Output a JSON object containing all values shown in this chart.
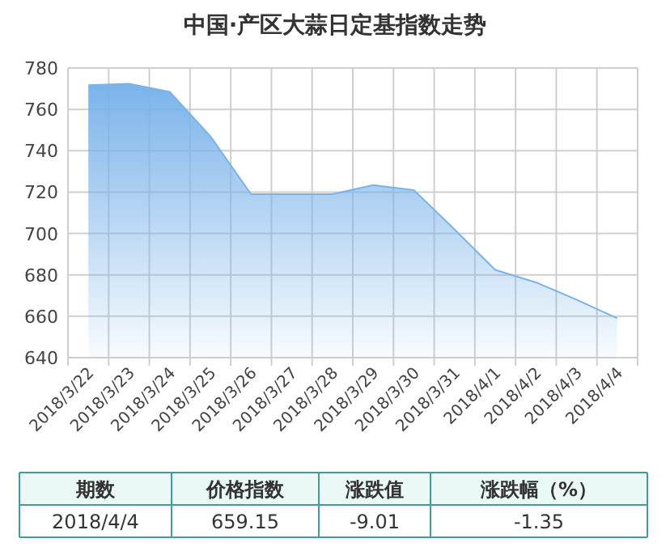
{
  "chart_data": {
    "type": "area",
    "title": "中国·产区大蒜日定基指数走势",
    "categories": [
      "2018/3/22",
      "2018/3/23",
      "2018/3/24",
      "2018/3/25",
      "2018/3/26",
      "2018/3/27",
      "2018/3/28",
      "2018/3/29",
      "2018/3/30",
      "2018/3/31",
      "2018/4/1",
      "2018/4/2",
      "2018/4/3",
      "2018/4/4"
    ],
    "series": [
      {
        "color": "#7ab3ea",
        "values": [
          771.7,
          772.4,
          768.5,
          747,
          719,
          719,
          719,
          723.4,
          721,
          702,
          682.4,
          676.4,
          668,
          659
        ]
      }
    ],
    "ylim": [
      640,
      780
    ],
    "yticks": [
      640,
      660,
      680,
      700,
      720,
      740,
      760,
      780
    ],
    "grid": true,
    "annotations": [
      "期数",
      "价格指数",
      "涨跌值",
      "涨跌幅（%）",
      "2018/4/4",
      "659.15",
      "-9.01",
      "-1.35"
    ]
  }
}
